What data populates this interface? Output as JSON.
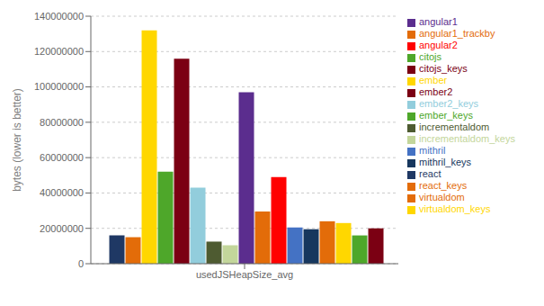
{
  "chart_data": {
    "type": "bar",
    "categories": [
      "usedJSHeapSize_avg"
    ],
    "series": [
      {
        "name": "react",
        "color": "#1F3864",
        "values": [
          16000000
        ]
      },
      {
        "name": "react_keys",
        "color": "#E36C09",
        "values": [
          15000000
        ]
      },
      {
        "name": "ember",
        "color": "#FFD700",
        "values": [
          132000000
        ]
      },
      {
        "name": "ember_keys",
        "color": "#4EA72A",
        "values": [
          52000000
        ]
      },
      {
        "name": "ember2",
        "color": "#7B0013",
        "values": [
          116000000
        ]
      },
      {
        "name": "ember2_keys",
        "color": "#92CDDC",
        "values": [
          43000000
        ]
      },
      {
        "name": "incrementaldom",
        "color": "#4E5B31",
        "values": [
          12500000
        ]
      },
      {
        "name": "incrementaldom_keys",
        "color": "#C3D69B",
        "values": [
          10500000
        ]
      },
      {
        "name": "angular1",
        "color": "#5B2D8E",
        "values": [
          97000000
        ]
      },
      {
        "name": "angular1_trackby",
        "color": "#E36C09",
        "values": [
          29500000
        ]
      },
      {
        "name": "angular2",
        "color": "#FF0000",
        "values": [
          49000000
        ]
      },
      {
        "name": "mithril",
        "color": "#4472C4",
        "values": [
          20500000
        ]
      },
      {
        "name": "mithril_keys",
        "color": "#17375E",
        "values": [
          19500000
        ]
      },
      {
        "name": "virtualdom",
        "color": "#E36C09",
        "values": [
          24000000
        ]
      },
      {
        "name": "virtualdom_keys",
        "color": "#FFD700",
        "values": [
          23000000
        ]
      },
      {
        "name": "citojs",
        "color": "#4EA72A",
        "values": [
          16000000
        ]
      },
      {
        "name": "citojs_keys",
        "color": "#7B0013",
        "values": [
          20000000
        ]
      }
    ],
    "ylabel": "bytes (lower is better)",
    "ylim": [
      0,
      140000000
    ],
    "yticks": [
      0,
      20000000,
      40000000,
      60000000,
      80000000,
      100000000,
      120000000,
      140000000
    ],
    "grid": true,
    "legend": "right"
  }
}
